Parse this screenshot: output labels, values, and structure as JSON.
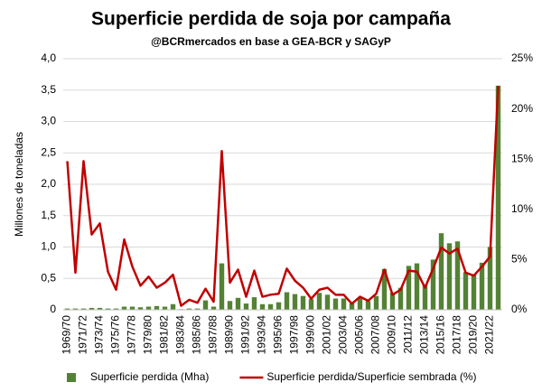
{
  "chart_data": {
    "type": "bar",
    "title": "Superficie perdida de soja por campaña",
    "subtitle": "@BCRmercados en base a GEA-BCR y SAGyP",
    "y_label": "Millones de toneladas",
    "categories": [
      "1969/70",
      null,
      "1971/72",
      null,
      "1973/74",
      null,
      "1975/76",
      null,
      "1977/78",
      null,
      "1979/80",
      null,
      "1981/82",
      null,
      "1983/84",
      null,
      "1985/86",
      null,
      "1987/88",
      null,
      "1989/90",
      null,
      "1991/92",
      null,
      "1993/94",
      null,
      "1995/96",
      null,
      "1997/98",
      null,
      "1999/00",
      null,
      "2001/02",
      null,
      "2003/04",
      null,
      "2005/06",
      null,
      "2007/08",
      null,
      "2009/10",
      null,
      "2011/12",
      null,
      "2013/14",
      null,
      "2015/16",
      null,
      "2017/18",
      null,
      "2019/20",
      null,
      "2021/22",
      null
    ],
    "series": [
      {
        "name": "Superficie perdida (Mha)",
        "color": "#548235",
        "values": [
          0.02,
          0.02,
          0.02,
          0.03,
          0.03,
          0.02,
          0.02,
          0.05,
          0.05,
          0.04,
          0.05,
          0.06,
          0.05,
          0.09,
          0.01,
          0.02,
          0.02,
          0.15,
          0.05,
          0.74,
          0.14,
          0.19,
          0.1,
          0.2,
          0.09,
          0.09,
          0.12,
          0.28,
          0.25,
          0.22,
          0.17,
          0.27,
          0.24,
          0.18,
          0.18,
          0.1,
          0.18,
          0.14,
          0.22,
          0.65,
          0.27,
          0.35,
          0.7,
          0.74,
          0.4,
          0.8,
          1.22,
          1.06,
          1.09,
          0.6,
          0.56,
          0.75,
          1.0,
          3.57
        ]
      },
      {
        "name": "Superficie perdida/Superficie sembrada (%)",
        "color": "#c00000",
        "type": "line",
        "axis": "y2",
        "values": [
          14.8,
          3.7,
          14.8,
          7.5,
          8.6,
          3.8,
          2.0,
          7.0,
          4.3,
          2.4,
          3.3,
          2.2,
          2.7,
          3.5,
          0.4,
          1.0,
          0.7,
          2.1,
          0.8,
          15.8,
          2.7,
          4.0,
          1.3,
          3.9,
          1.3,
          1.5,
          1.6,
          4.1,
          2.9,
          2.2,
          1.1,
          2.0,
          2.2,
          1.5,
          1.5,
          0.6,
          1.3,
          0.9,
          1.6,
          4.0,
          1.5,
          2.0,
          3.9,
          3.8,
          2.2,
          4.1,
          6.2,
          5.6,
          6.1,
          3.7,
          3.4,
          4.3,
          5.3,
          22.3
        ]
      }
    ],
    "ylim": [
      0,
      4
    ],
    "yticks": [
      0,
      {
        "value": 0.5,
        "label": "0,5"
      },
      {
        "value": 1,
        "label": "1,0"
      },
      {
        "value": 1.5,
        "label": "1,5"
      },
      {
        "value": 2,
        "label": "2,0"
      },
      {
        "value": 2.5,
        "label": "2,5"
      },
      {
        "value": 3,
        "label": "3,0"
      },
      {
        "value": 3.5,
        "label": "3,5"
      },
      {
        "value": 4,
        "label": "4,0"
      }
    ],
    "y2lim": [
      0,
      25
    ],
    "y2ticks": [
      {
        "value": 0,
        "label": "0%"
      },
      {
        "value": 5,
        "label": "5%"
      },
      {
        "value": 10,
        "label": "10%"
      },
      {
        "value": 15,
        "label": "15%"
      },
      {
        "value": 20,
        "label": "20%"
      },
      {
        "value": 25,
        "label": "25%"
      }
    ],
    "grid": true,
    "legend": "bottom"
  }
}
